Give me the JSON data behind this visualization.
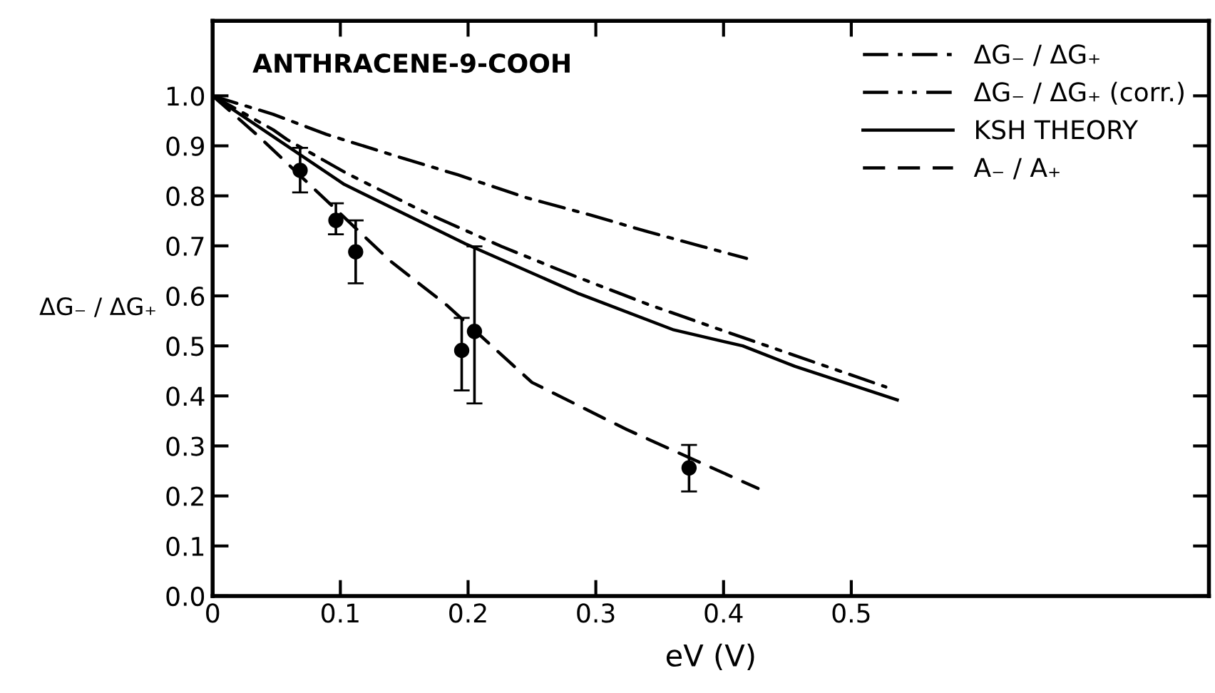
{
  "chart_data": {
    "type": "line",
    "xlabel": "eV (V)",
    "ylabel": "ΔG₋ / ΔG₊",
    "annotations": [
      {
        "text": "ANTHRACENE-9-COOH"
      }
    ],
    "xlim": [
      0,
      0.78
    ],
    "ylim": [
      0,
      1.15
    ],
    "xticks": [
      {
        "value": 0,
        "label": "0"
      },
      {
        "value": 0.1,
        "label": "0.1"
      },
      {
        "value": 0.2,
        "label": "0.2"
      },
      {
        "value": 0.3,
        "label": "0.3"
      },
      {
        "value": 0.4,
        "label": "0.4"
      },
      {
        "value": 0.5,
        "label": "0.5"
      }
    ],
    "yticks": [
      {
        "value": 0,
        "label": "0.0"
      },
      {
        "value": 0.1,
        "label": "0.1"
      },
      {
        "value": 0.2,
        "label": "0.2"
      },
      {
        "value": 0.3,
        "label": "0.3"
      },
      {
        "value": 0.4,
        "label": "0.4"
      },
      {
        "value": 0.5,
        "label": "0.5"
      },
      {
        "value": 0.6,
        "label": "0.6"
      },
      {
        "value": 0.7,
        "label": "0.7"
      },
      {
        "value": 0.8,
        "label": "0.8"
      },
      {
        "value": 0.9,
        "label": "0.9"
      },
      {
        "value": 1.0,
        "label": "1.0"
      }
    ],
    "grid": false,
    "legend": "top right",
    "marker": "none",
    "series": [
      {
        "name": "ΔG₋ / ΔG₊",
        "color": "#000000",
        "line_style": "dashdot",
        "x": [
          0,
          0.0475,
          0.089,
          0.143,
          0.192,
          0.246,
          0.294,
          0.341,
          0.383,
          0.418
        ],
        "values": [
          1.0,
          0.963,
          0.923,
          0.88,
          0.842,
          0.796,
          0.763,
          0.728,
          0.699,
          0.675
        ]
      },
      {
        "name": "ΔG₋ / ΔG₊ (corr.)",
        "color": "#000000",
        "line_style": "dashdotdot",
        "x": [
          0,
          0.0475,
          0.058,
          0.105,
          0.167,
          0.226,
          0.281,
          0.341,
          0.399,
          0.527
        ],
        "values": [
          1.0,
          0.932,
          0.913,
          0.845,
          0.766,
          0.699,
          0.642,
          0.583,
          0.531,
          0.418
        ]
      },
      {
        "name": "KSH THEORY",
        "color": "#000000",
        "line_style": "solid",
        "x": [
          0,
          0.103,
          0.198,
          0.287,
          0.361,
          0.415,
          0.456,
          0.536
        ],
        "values": [
          1.0,
          0.823,
          0.704,
          0.604,
          0.532,
          0.5,
          0.459,
          0.392
        ]
      },
      {
        "name": "A₋ / A₊",
        "color": "#000000",
        "line_style": "dashed",
        "x": [
          0,
          0.0365,
          0.139,
          0.184,
          0.25,
          0.324,
          0.427
        ],
        "values": [
          1.0,
          0.918,
          0.67,
          0.58,
          0.427,
          0.333,
          0.215
        ]
      },
      {
        "type": "scatter",
        "color": "#000000",
        "marker": "circle",
        "x": [
          0.0685,
          0.0965,
          0.112,
          0.195,
          0.205,
          0.373
        ],
        "values": [
          0.851,
          0.751,
          0.688,
          0.491,
          0.529,
          0.256
        ],
        "errors": [
          [
            0.807,
            0.896
          ],
          [
            0.723,
            0.785
          ],
          [
            0.625,
            0.751
          ],
          [
            0.411,
            0.556
          ],
          [
            0.385,
            0.699
          ],
          [
            0.209,
            0.302
          ]
        ]
      }
    ]
  }
}
